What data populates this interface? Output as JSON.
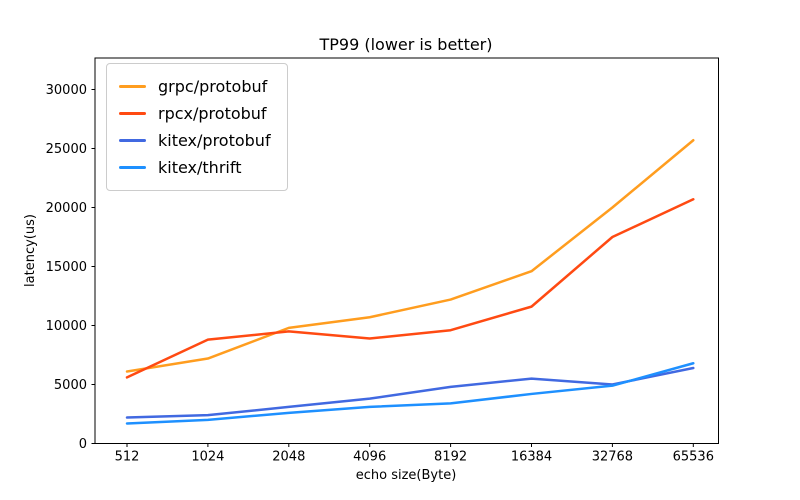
{
  "chart_data": {
    "type": "line",
    "title": "TP99 (lower is better)",
    "xlabel": "echo size(Byte)",
    "ylabel": "latency(us)",
    "categories": [
      "512",
      "1024",
      "2048",
      "4096",
      "8192",
      "16384",
      "32768",
      "65536"
    ],
    "yticks": [
      0,
      5000,
      10000,
      15000,
      20000,
      25000,
      30000
    ],
    "ylim": [
      0,
      32670
    ],
    "grid": false,
    "legend_position": "upper left",
    "series": [
      {
        "name": "grpc/protobuf",
        "color": "#ff9d1f",
        "values": [
          6100,
          7200,
          9800,
          10700,
          12200,
          14600,
          20000,
          25700
        ]
      },
      {
        "name": "rpcx/protobuf",
        "color": "#ff4a12",
        "values": [
          5600,
          8800,
          9500,
          8900,
          9600,
          11600,
          17500,
          20700
        ]
      },
      {
        "name": "kitex/protobuf",
        "color": "#4169e1",
        "values": [
          2200,
          2400,
          3100,
          3800,
          4800,
          5500,
          5000,
          6400
        ]
      },
      {
        "name": "kitex/thrift",
        "color": "#1e90ff",
        "values": [
          1700,
          2000,
          2600,
          3100,
          3400,
          4200,
          4900,
          6800
        ]
      }
    ]
  }
}
